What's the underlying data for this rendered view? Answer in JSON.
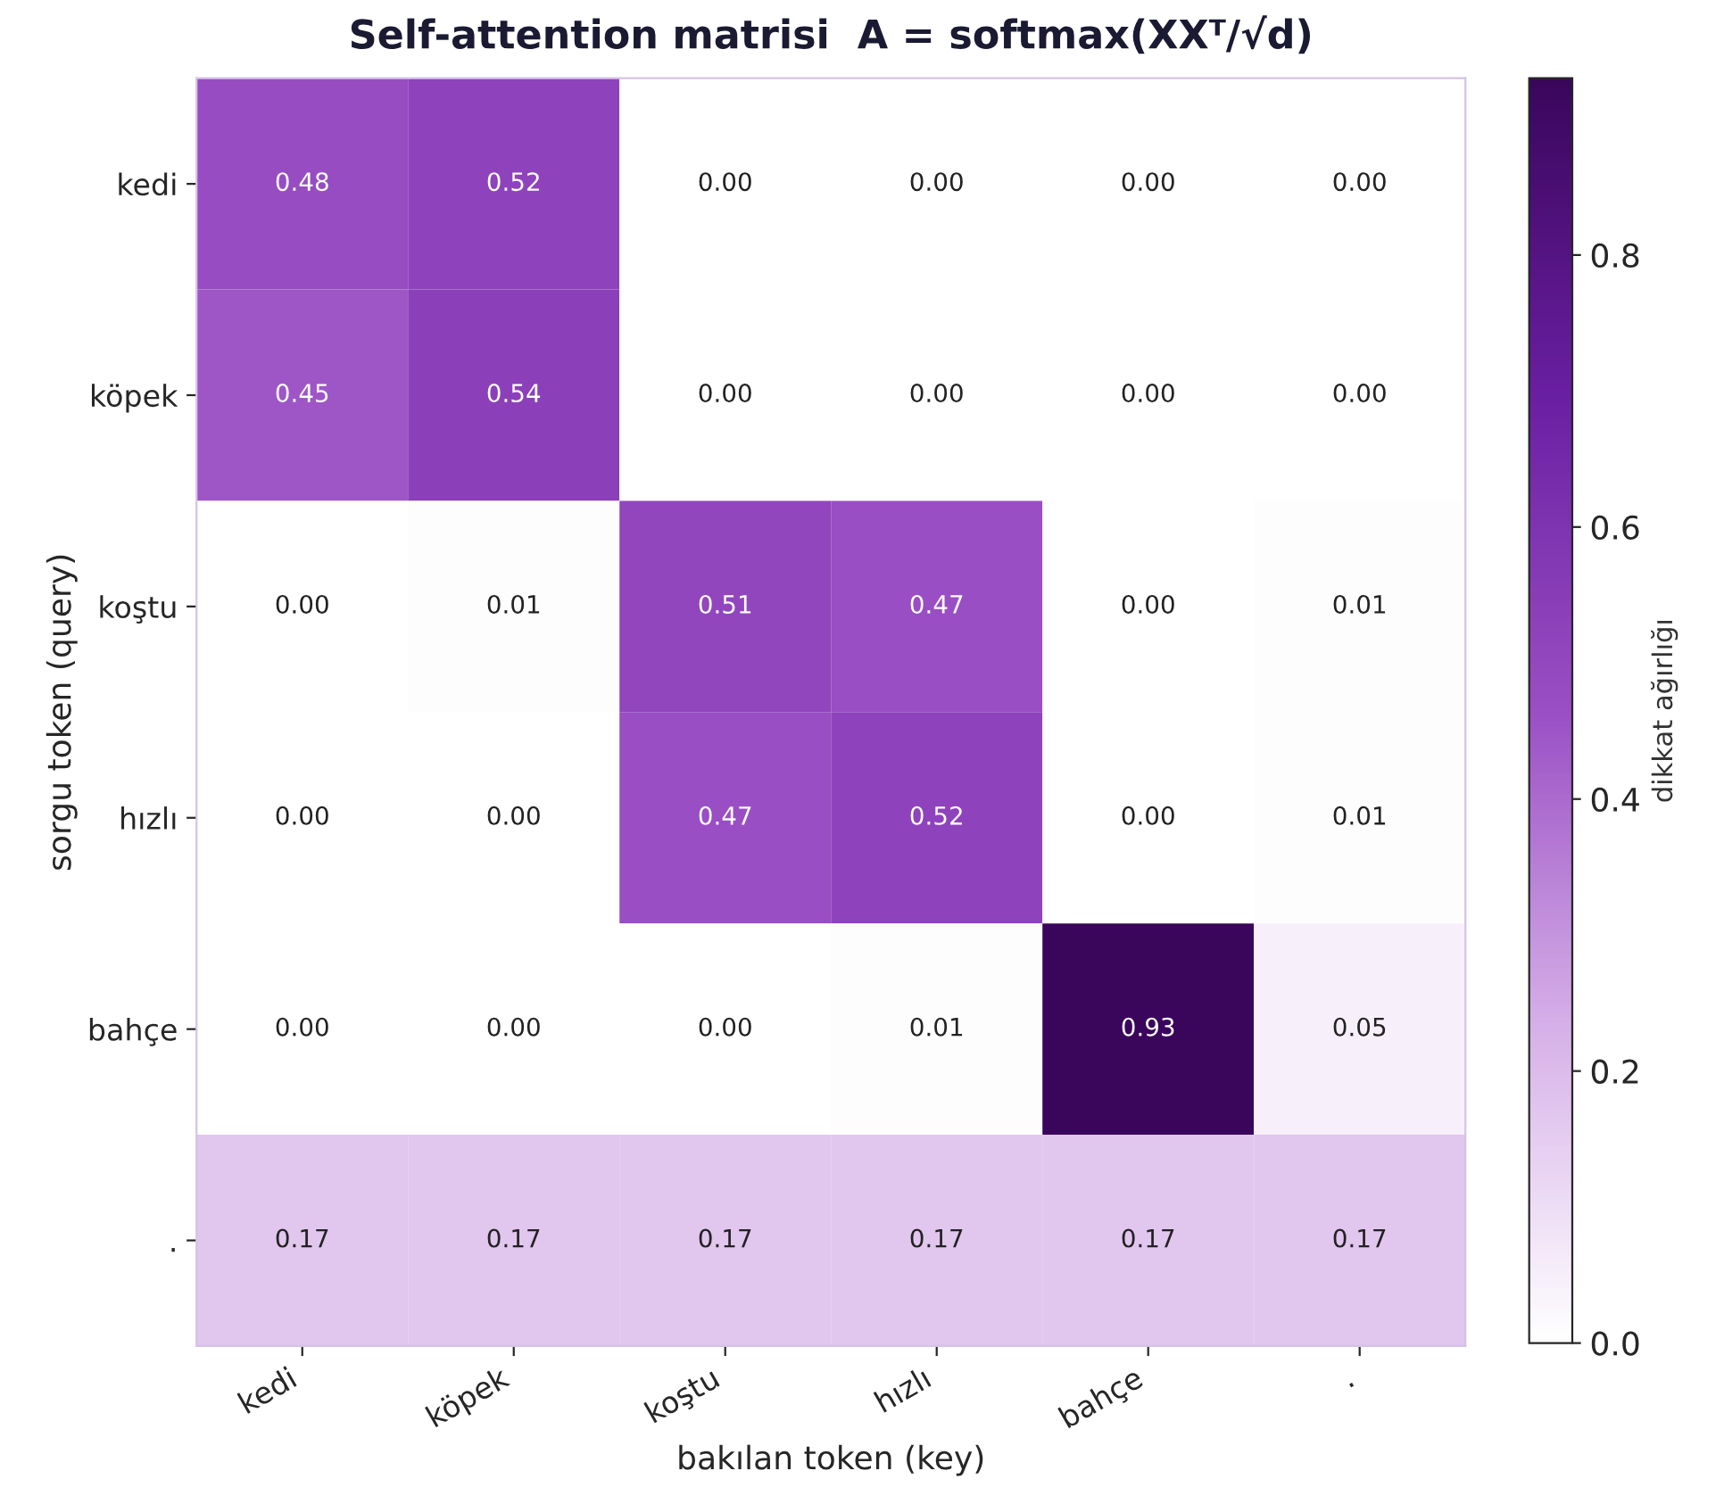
{
  "chart_data": {
    "type": "heatmap",
    "title": "Self-attention matrisi  A = softmax(XXᵀ/√d)",
    "xlabel": "bakılan token (key)",
    "ylabel": "sorgu token (query)",
    "clabel": "dikkat ağırlığı",
    "categories": [
      "kedi",
      "köpek",
      "koştu",
      "hızlı",
      "bahçe",
      "."
    ],
    "y_categories": [
      "kedi",
      "köpek",
      "koştu",
      "hızlı",
      "bahçe",
      "."
    ],
    "cells": [
      [
        0.48,
        0.52,
        0.0,
        0.0,
        0.0,
        0.0
      ],
      [
        0.45,
        0.54,
        0.0,
        0.0,
        0.0,
        0.0
      ],
      [
        0.0,
        0.01,
        0.51,
        0.47,
        0.0,
        0.01
      ],
      [
        0.0,
        0.0,
        0.47,
        0.52,
        0.0,
        0.01
      ],
      [
        0.0,
        0.0,
        0.0,
        0.01,
        0.93,
        0.05
      ],
      [
        0.17,
        0.17,
        0.17,
        0.17,
        0.17,
        0.17
      ]
    ],
    "cell_labels": [
      [
        "0.48",
        "0.52",
        "0.00",
        "0.00",
        "0.00",
        "0.00"
      ],
      [
        "0.45",
        "0.54",
        "0.00",
        "0.00",
        "0.00",
        "0.00"
      ],
      [
        "0.00",
        "0.01",
        "0.51",
        "0.47",
        "0.00",
        "0.01"
      ],
      [
        "0.00",
        "0.00",
        "0.47",
        "0.52",
        "0.00",
        "0.01"
      ],
      [
        "0.00",
        "0.00",
        "0.00",
        "0.01",
        "0.93",
        "0.05"
      ],
      [
        "0.17",
        "0.17",
        "0.17",
        "0.17",
        "0.17",
        "0.17"
      ]
    ],
    "clim": [
      0,
      0.93
    ],
    "cticks": [
      {
        "value": 0,
        "label": "0.0"
      },
      {
        "value": 0.2,
        "label": "0.2"
      },
      {
        "value": 0.4,
        "label": "0.4"
      },
      {
        "value": 0.6,
        "label": "0.6"
      },
      {
        "value": 0.8,
        "label": "0.8"
      }
    ]
  }
}
